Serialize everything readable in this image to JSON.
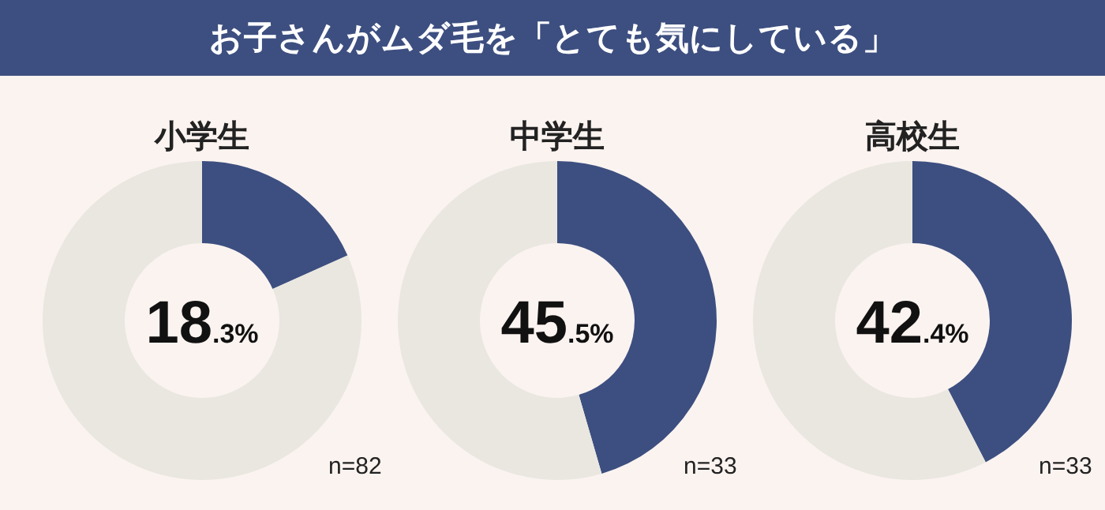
{
  "chart_data": [
    {
      "type": "donut",
      "title": "お子さんがムダ毛を「とても気にしている」",
      "subtitle": "小学生",
      "categories": [
        null,
        null
      ],
      "values": [
        18.3,
        81.7
      ],
      "colors": [
        "#3d4f80",
        "#e9e7df"
      ],
      "annotations": [
        "18.3%",
        "n=82"
      ]
    },
    {
      "type": "donut",
      "subtitle": "中学生",
      "categories": [
        null,
        null
      ],
      "values": [
        45.5,
        54.5
      ],
      "colors": [
        "#3d4f80",
        "#e9e7df"
      ],
      "annotations": [
        "45.5%",
        "n=33"
      ]
    },
    {
      "type": "donut",
      "subtitle": "高校生",
      "categories": [
        null,
        null
      ],
      "values": [
        42.4,
        57.6
      ],
      "colors": [
        "#3d4f80",
        "#e9e7df"
      ],
      "annotations": [
        "42.4%",
        "n=33"
      ]
    }
  ]
}
